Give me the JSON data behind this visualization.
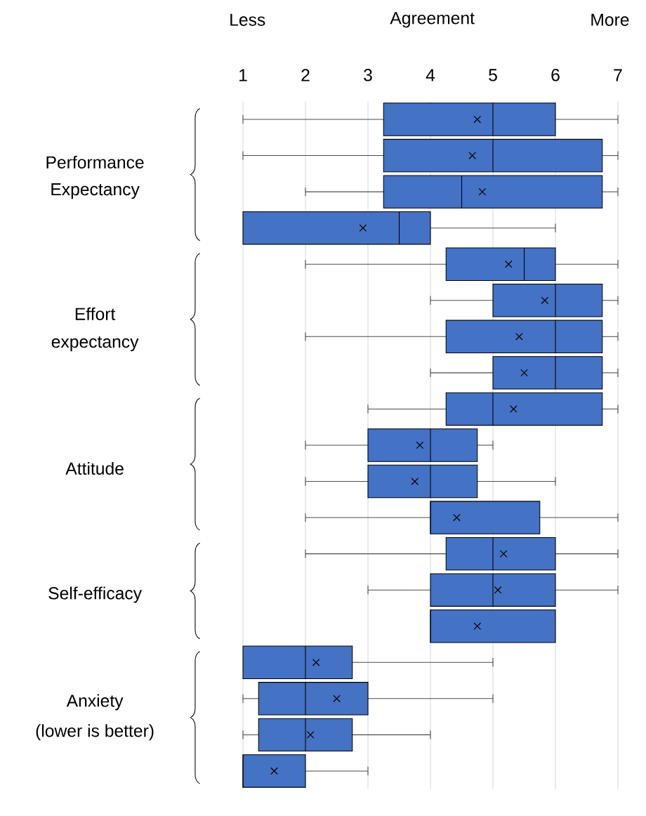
{
  "chart_data": {
    "type": "box",
    "orientation": "horizontal",
    "categories": [
      null,
      null,
      null,
      null,
      null,
      null,
      null,
      null,
      null,
      null,
      null,
      null,
      null,
      null,
      null,
      null,
      null,
      null,
      null
    ],
    "color": "#4472c4",
    "boxes": [
      {
        "low": 1,
        "q1": 3.25,
        "median": 5,
        "q3": 6,
        "high": 7,
        "mean": 4.75
      },
      {
        "low": 1,
        "q1": 3.25,
        "median": 5,
        "q3": 6.75,
        "high": 7,
        "mean": 4.67
      },
      {
        "low": 2,
        "q1": 3.25,
        "median": 4.5,
        "q3": 6.75,
        "high": 7,
        "mean": 4.83
      },
      {
        "low": 1,
        "q1": 1,
        "median": 3.5,
        "q3": 4,
        "high": 6,
        "mean": 2.92
      },
      {
        "low": 2,
        "q1": 4.25,
        "median": 5.5,
        "q3": 6,
        "high": 7,
        "mean": 5.25
      },
      {
        "low": 4,
        "q1": 5,
        "median": 6,
        "q3": 6.75,
        "high": 7,
        "mean": 5.83
      },
      {
        "low": 2,
        "q1": 4.25,
        "median": 6,
        "q3": 6.75,
        "high": 7,
        "mean": 5.42
      },
      {
        "low": 4,
        "q1": 5,
        "median": 6,
        "q3": 6.75,
        "high": 7,
        "mean": 5.5
      },
      {
        "low": 3,
        "q1": 4.25,
        "median": 5,
        "q3": 6.75,
        "high": 7,
        "mean": 5.33
      },
      {
        "low": 2,
        "q1": 3,
        "median": 4,
        "q3": 4.75,
        "high": 5,
        "mean": 3.83
      },
      {
        "low": 2,
        "q1": 3,
        "median": 4,
        "q3": 4.75,
        "high": 6,
        "mean": 3.75
      },
      {
        "low": 2,
        "q1": 4,
        "median": 4,
        "q3": 5.75,
        "high": 7,
        "mean": 4.42
      },
      {
        "low": 2,
        "q1": 4.25,
        "median": 5,
        "q3": 6,
        "high": 7,
        "mean": 5.17
      },
      {
        "low": 3,
        "q1": 4,
        "median": 5,
        "q3": 6,
        "high": 7,
        "mean": 5.08
      },
      {
        "low": 4,
        "q1": 4,
        "median": 4,
        "q3": 6,
        "high": 6,
        "mean": 4.75
      },
      {
        "low": 1,
        "q1": 1,
        "median": 2,
        "q3": 2.75,
        "high": 5,
        "mean": 2.17
      },
      {
        "low": 1,
        "q1": 1.25,
        "median": 2,
        "q3": 3,
        "high": 5,
        "mean": 2.5
      },
      {
        "low": 1,
        "q1": 1.25,
        "median": 2,
        "q3": 2.75,
        "high": 4,
        "mean": 2.08
      },
      {
        "low": 1,
        "q1": 1,
        "median": 1,
        "q3": 2,
        "high": 3,
        "mean": 1.5
      }
    ],
    "xlim": [
      1,
      7
    ],
    "xticks": [
      1,
      2,
      3,
      4,
      5,
      6,
      7
    ],
    "grid": "x",
    "annotations": [
      "Less",
      "Agreement",
      "More",
      "Performance",
      "Expectancy",
      "Effort",
      "expectancy",
      "Attitude",
      "Self-efficacy",
      "Anxiety",
      "(lower is better)"
    ]
  }
}
